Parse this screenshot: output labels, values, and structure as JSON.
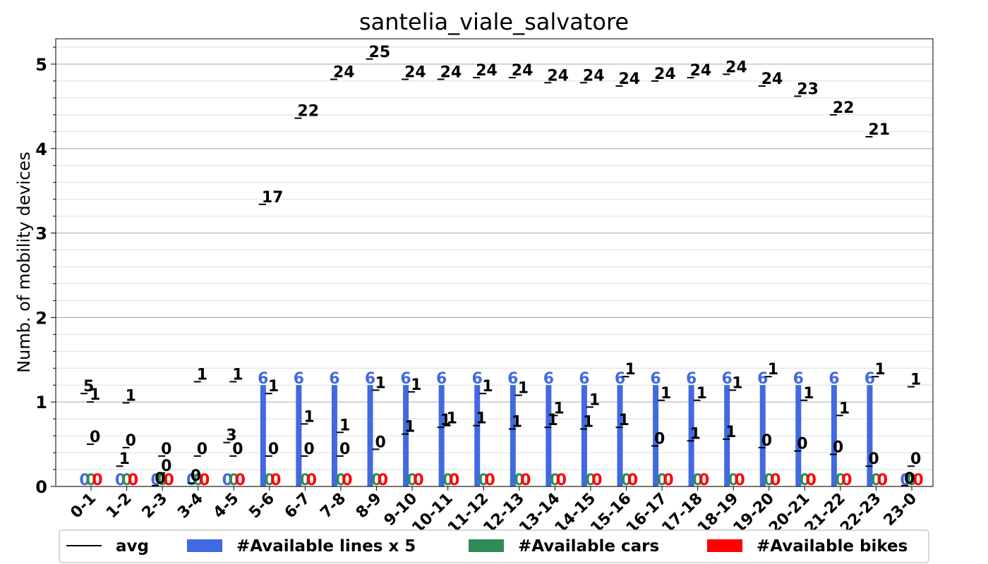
{
  "chart_data": {
    "type": "bar",
    "title": "santelia_viale_salvatore",
    "ylabel": "Numb. of mobility devices",
    "xlabel": "",
    "ylim": [
      0,
      5.3
    ],
    "yticks": [
      0,
      1,
      2,
      3,
      4,
      5
    ],
    "grid": true,
    "legend_position": "bottom",
    "categories": [
      "0-1",
      "1-2",
      "2-3",
      "3-4",
      "4-5",
      "5-6",
      "6-7",
      "7-8",
      "8-9",
      "9-10",
      "10-11",
      "11-12",
      "12-13",
      "13-14",
      "14-15",
      "15-16",
      "16-17",
      "17-18",
      "18-19",
      "19-20",
      "20-21",
      "21-22",
      "22-23",
      "23-0"
    ],
    "series": [
      {
        "name": "#Available lines x 5",
        "color": "#4169e1",
        "values": [
          0,
          0,
          0,
          0,
          0,
          1.2,
          1.2,
          1.2,
          1.2,
          1.2,
          1.2,
          1.2,
          1.2,
          1.2,
          1.2,
          1.2,
          1.2,
          1.2,
          1.2,
          1.2,
          1.2,
          1.2,
          1.2,
          0
        ],
        "labels": [
          "0",
          "0",
          "0",
          "0",
          "0",
          "6",
          "6",
          "6",
          "6",
          "6",
          "6",
          "6",
          "6",
          "6",
          "6",
          "6",
          "6",
          "6",
          "6",
          "6",
          "6",
          "6",
          "6",
          "0"
        ]
      },
      {
        "name": "#Available cars",
        "color": "#2e8b57",
        "values": [
          0,
          0,
          0,
          0,
          0,
          0,
          0,
          0,
          0,
          0,
          0,
          0,
          0,
          0,
          0,
          0,
          0,
          0,
          0,
          0,
          0,
          0,
          0,
          0
        ],
        "labels": [
          "0",
          "0",
          "0",
          "0",
          "0",
          "0",
          "0",
          "0",
          "0",
          "0",
          "0",
          "0",
          "0",
          "0",
          "0",
          "0",
          "0",
          "0",
          "0",
          "0",
          "0",
          "0",
          "0",
          "0"
        ]
      },
      {
        "name": "#Available bikes",
        "color": "#ff0000",
        "values": [
          0,
          0,
          0,
          0,
          0,
          0,
          0,
          0,
          0,
          0,
          0,
          0,
          0,
          0,
          0,
          0,
          0,
          0,
          0,
          0,
          0,
          0,
          0,
          0
        ],
        "labels": [
          "0",
          "0",
          "0",
          "0",
          "0",
          "0",
          "0",
          "0",
          "0",
          "0",
          "0",
          "0",
          "0",
          "0",
          "0",
          "0",
          "0",
          "0",
          "0",
          "0",
          "0",
          "0",
          "0",
          "0"
        ]
      }
    ],
    "avg_name": "avg",
    "avg_markers": [
      {
        "x": 0,
        "y": 1.1,
        "label": "5",
        "col": 0
      },
      {
        "x": 0,
        "y": 1.0,
        "label": "1",
        "col": 1
      },
      {
        "x": 0,
        "y": 0.5,
        "label": "0",
        "col": 1
      },
      {
        "x": 1,
        "y": 0.99,
        "label": "1",
        "col": 1
      },
      {
        "x": 1,
        "y": 0.46,
        "label": "0",
        "col": 1
      },
      {
        "x": 1,
        "y": 0.24,
        "label": "1",
        "col": 0
      },
      {
        "x": 2,
        "y": 0.36,
        "label": "0",
        "col": 1
      },
      {
        "x": 2,
        "y": 0.16,
        "label": "0",
        "col": 1
      },
      {
        "x": 2,
        "y": 0.01,
        "label": "0",
        "col": 0
      },
      {
        "x": 3,
        "y": 1.24,
        "label": "1",
        "col": 1
      },
      {
        "x": 3,
        "y": 0.36,
        "label": "0",
        "col": 1
      },
      {
        "x": 3,
        "y": 0.04,
        "label": "0",
        "col": 0
      },
      {
        "x": 4,
        "y": 1.24,
        "label": "1",
        "col": 1
      },
      {
        "x": 4,
        "y": 0.52,
        "label": "3",
        "col": 0
      },
      {
        "x": 4,
        "y": 0.36,
        "label": "0",
        "col": 1
      },
      {
        "x": 5,
        "y": 3.34,
        "label": "17",
        "col": 0
      },
      {
        "x": 5,
        "y": 1.1,
        "label": "1",
        "col": 1
      },
      {
        "x": 5,
        "y": 0.36,
        "label": "0",
        "col": 1
      },
      {
        "x": 6,
        "y": 4.36,
        "label": "22",
        "col": 0
      },
      {
        "x": 6,
        "y": 0.74,
        "label": "1",
        "col": 1
      },
      {
        "x": 6,
        "y": 0.36,
        "label": "0",
        "col": 1
      },
      {
        "x": 7,
        "y": 4.82,
        "label": "24",
        "col": 0
      },
      {
        "x": 7,
        "y": 0.64,
        "label": "1",
        "col": 1
      },
      {
        "x": 7,
        "y": 0.36,
        "label": "0",
        "col": 1
      },
      {
        "x": 8,
        "y": 5.06,
        "label": "25",
        "col": 0
      },
      {
        "x": 8,
        "y": 1.14,
        "label": "1",
        "col": 1
      },
      {
        "x": 8,
        "y": 0.44,
        "label": "0",
        "col": 1
      },
      {
        "x": 9,
        "y": 4.82,
        "label": "24",
        "col": 0
      },
      {
        "x": 9,
        "y": 1.12,
        "label": "1",
        "col": 1
      },
      {
        "x": 9,
        "y": 0.62,
        "label": "1",
        "col": 0
      },
      {
        "x": 10,
        "y": 4.82,
        "label": "24",
        "col": 0
      },
      {
        "x": 10,
        "y": 0.72,
        "label": "1",
        "col": 1
      },
      {
        "x": 10,
        "y": 0.7,
        "label": "1",
        "col": 0
      },
      {
        "x": 11,
        "y": 4.84,
        "label": "24",
        "col": 0
      },
      {
        "x": 11,
        "y": 1.1,
        "label": "1",
        "col": 1
      },
      {
        "x": 11,
        "y": 0.72,
        "label": "1",
        "col": 0
      },
      {
        "x": 12,
        "y": 4.84,
        "label": "24",
        "col": 0
      },
      {
        "x": 12,
        "y": 1.08,
        "label": "1",
        "col": 1
      },
      {
        "x": 12,
        "y": 0.68,
        "label": "1",
        "col": 0
      },
      {
        "x": 13,
        "y": 4.78,
        "label": "24",
        "col": 0
      },
      {
        "x": 13,
        "y": 0.84,
        "label": "1",
        "col": 1
      },
      {
        "x": 13,
        "y": 0.7,
        "label": "1",
        "col": 0
      },
      {
        "x": 14,
        "y": 4.78,
        "label": "24",
        "col": 0
      },
      {
        "x": 14,
        "y": 0.94,
        "label": "1",
        "col": 1
      },
      {
        "x": 14,
        "y": 0.68,
        "label": "1",
        "col": 0
      },
      {
        "x": 15,
        "y": 4.74,
        "label": "24",
        "col": 0
      },
      {
        "x": 15,
        "y": 1.3,
        "label": "1",
        "col": 1
      },
      {
        "x": 15,
        "y": 0.7,
        "label": "1",
        "col": 0
      },
      {
        "x": 16,
        "y": 4.8,
        "label": "24",
        "col": 0
      },
      {
        "x": 16,
        "y": 1.02,
        "label": "1",
        "col": 1
      },
      {
        "x": 16,
        "y": 0.48,
        "label": "0",
        "col": 0
      },
      {
        "x": 17,
        "y": 4.84,
        "label": "24",
        "col": 0
      },
      {
        "x": 17,
        "y": 1.02,
        "label": "1",
        "col": 1
      },
      {
        "x": 17,
        "y": 0.54,
        "label": "1",
        "col": 0
      },
      {
        "x": 18,
        "y": 4.88,
        "label": "24",
        "col": 0
      },
      {
        "x": 18,
        "y": 1.14,
        "label": "1",
        "col": 1
      },
      {
        "x": 18,
        "y": 0.56,
        "label": "1",
        "col": 0
      },
      {
        "x": 19,
        "y": 4.74,
        "label": "24",
        "col": 0
      },
      {
        "x": 19,
        "y": 1.3,
        "label": "1",
        "col": 1
      },
      {
        "x": 19,
        "y": 0.46,
        "label": "0",
        "col": 0
      },
      {
        "x": 20,
        "y": 4.62,
        "label": "23",
        "col": 0
      },
      {
        "x": 20,
        "y": 1.02,
        "label": "1",
        "col": 1
      },
      {
        "x": 20,
        "y": 0.42,
        "label": "0",
        "col": 0
      },
      {
        "x": 21,
        "y": 4.4,
        "label": "22",
        "col": 0
      },
      {
        "x": 21,
        "y": 0.84,
        "label": "1",
        "col": 1
      },
      {
        "x": 21,
        "y": 0.38,
        "label": "0",
        "col": 0
      },
      {
        "x": 22,
        "y": 4.14,
        "label": "21",
        "col": 0
      },
      {
        "x": 22,
        "y": 1.3,
        "label": "1",
        "col": 1
      },
      {
        "x": 22,
        "y": 0.24,
        "label": "0",
        "col": 0
      },
      {
        "x": 23,
        "y": 1.18,
        "label": "1",
        "col": 1
      },
      {
        "x": 23,
        "y": 0.24,
        "label": "0",
        "col": 1
      },
      {
        "x": 23,
        "y": 0.01,
        "label": "0",
        "col": 0
      }
    ]
  }
}
